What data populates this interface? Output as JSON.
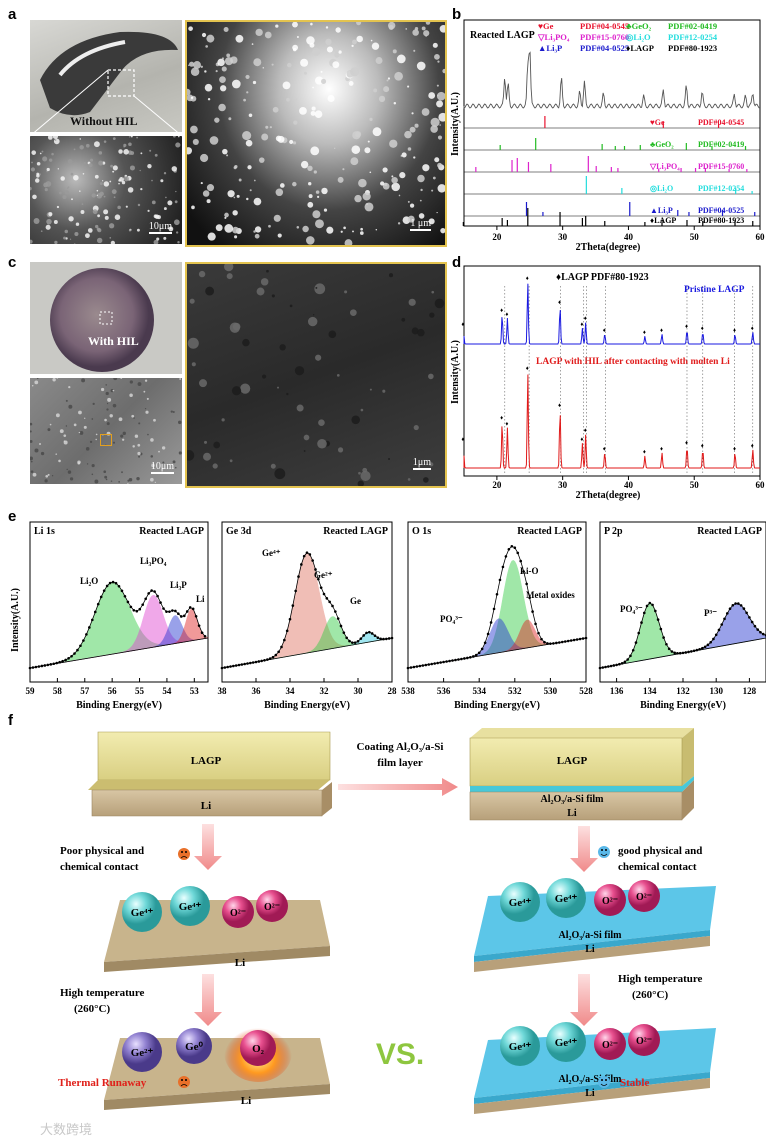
{
  "panel_labels": {
    "a": "a",
    "b": "b",
    "c": "c",
    "d": "d",
    "e": "e",
    "f": "f"
  },
  "panel_a": {
    "photo_label": "Without HIL",
    "scale_small": "10μm",
    "scale_large": "1 μm"
  },
  "panel_c": {
    "photo_label": "With HIL",
    "scale_small": "10μm",
    "scale_large": "1μm"
  },
  "panel_b": {
    "title": "Reacted LAGP",
    "legend": [
      {
        "sym": "♥",
        "name": "Ge",
        "pdf": "PDF#04-0545",
        "color": "#e8112d"
      },
      {
        "sym": "♣",
        "name": "GeO₂",
        "pdf": "PDF#02-0419",
        "color": "#22bb22"
      },
      {
        "sym": "▽",
        "name": "Li₃PO₄",
        "pdf": "PDF#15-0760",
        "color": "#dd22cc"
      },
      {
        "sym": "◎",
        "name": "Li₂O",
        "pdf": "PDF#12-0254",
        "color": "#22dddd"
      },
      {
        "sym": "▲",
        "name": "Li₃P",
        "pdf": "PDF#04-0525",
        "color": "#1a1acc"
      },
      {
        "sym": "♦",
        "name": "LAGP",
        "pdf": "PDF#80-1923",
        "color": "#000000"
      }
    ],
    "xlabel": "2Theta(degree)",
    "ylabel": "Intensity(A.U.)",
    "xticks": [
      "20",
      "30",
      "40",
      "50",
      "60"
    ]
  },
  "panel_d": {
    "ref_label": "♦LAGP   PDF#80-1923",
    "pristine": "Pristine LAGP",
    "reacted": "LAGP with HIL after contacting with molten Li",
    "xlabel": "2Theta(degree)",
    "ylabel": "Intensity(A.U.)",
    "xticks": [
      "20",
      "30",
      "40",
      "50",
      "60"
    ]
  },
  "panel_e": [
    {
      "title": "Li 1s",
      "subtitle": "Reacted LAGP",
      "xlabel": "Binding Energy(eV)",
      "xticks": [
        "59",
        "58",
        "57",
        "56",
        "55",
        "54",
        "53"
      ],
      "peaks": [
        "Li₂O",
        "Li₃PO₄",
        "Li₃P",
        "Li"
      ]
    },
    {
      "title": "Ge 3d",
      "subtitle": "Reacted LAGP",
      "xlabel": "Binding Energy(eV)",
      "xticks": [
        "38",
        "36",
        "34",
        "32",
        "30",
        "28"
      ],
      "peaks": [
        "Ge⁴⁺",
        "Ge²⁺",
        "Ge"
      ]
    },
    {
      "title": "O 1s",
      "subtitle": "Reacted LAGP",
      "xlabel": "Binding Energy(eV)",
      "xticks": [
        "538",
        "536",
        "534",
        "532",
        "530",
        "528"
      ],
      "peaks": [
        "Li-O",
        "Metal oxides",
        "PO₄³⁻"
      ]
    },
    {
      "title": "P 2p",
      "subtitle": "Reacted LAGP",
      "xlabel": "Binding Energy(eV)",
      "xticks": [
        "136",
        "134",
        "132",
        "130",
        "128"
      ],
      "peaks": [
        "PO₄³⁻",
        "P³⁻"
      ]
    }
  ],
  "panel_e_ylabel": "Intensity(A.U.)",
  "panel_f": {
    "left_top": "LAGP",
    "left_li": "Li",
    "arrow_label_1": "Coating Al₂O₃/a-Si",
    "arrow_label_2": "film layer",
    "right_top": "LAGP",
    "right_film": "Al₂O₃/a-Si film",
    "right_li": "Li",
    "poor_1": "Poor physical and",
    "poor_2": "chemical contact",
    "good_1": "good physical and",
    "good_2": "chemical contact",
    "ions_left": [
      "Ge⁴⁺",
      "Ge⁴⁺",
      "O²⁻",
      "O²⁻"
    ],
    "ions_right": [
      "Ge⁴⁺",
      "Ge⁴⁺",
      "O²⁻",
      "O²⁻"
    ],
    "slab_li": "Li",
    "slab_film": "Al₂O₃/a-Si film",
    "ht_1": "High temperature",
    "ht_2": "(260°C)",
    "ions_left_hot": [
      "Ge²⁺",
      "Ge⁰",
      "O₂"
    ],
    "ions_right_hot": [
      "Ge⁴⁺",
      "Ge⁴⁺",
      "O²⁻",
      "O²⁻"
    ],
    "vs": "VS.",
    "thermal": "Thermal Runaway",
    "stable": "Stable"
  },
  "watermark": "大数跨境"
}
